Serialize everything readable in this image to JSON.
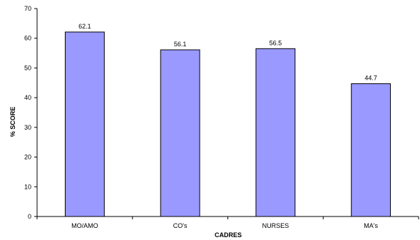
{
  "chart_data": {
    "type": "bar",
    "categories": [
      "MO/AMO",
      "CO's",
      "NURSES",
      "MA's"
    ],
    "values": [
      62.1,
      56.1,
      56.5,
      44.7
    ],
    "data_labels": [
      "62.1",
      "56.1",
      "56.5",
      "44.7"
    ],
    "title": "",
    "xlabel": "CADRES",
    "ylabel": "% SCORE",
    "ylim": [
      0,
      70
    ],
    "yticks": [
      0,
      10,
      20,
      30,
      40,
      50,
      60,
      70
    ],
    "grid": false,
    "legend": "none",
    "bar_color": "#9999ff",
    "bar_edge_color": "#000000"
  }
}
